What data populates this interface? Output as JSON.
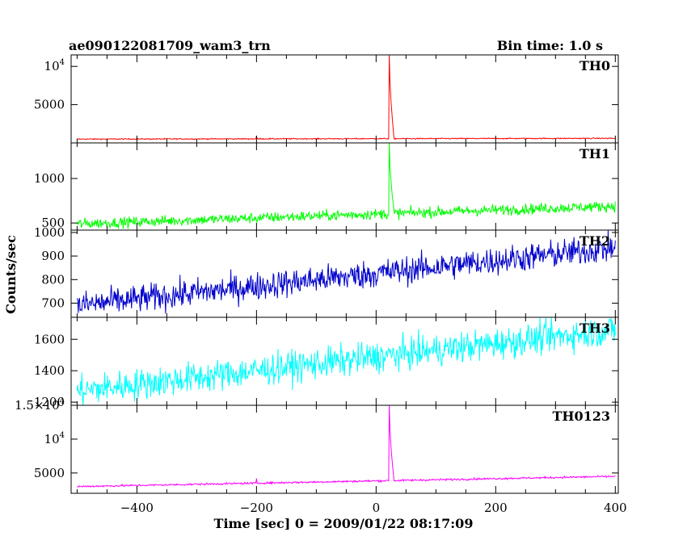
{
  "header": {
    "left_title": "ae090122081709_wam3_trn",
    "right_title": "Bin time: 1.0 s"
  },
  "chart_data": {
    "type": "line",
    "shared_x_axis": true,
    "xlabel": "Time [sec] 0 = 2009/01/22 08:17:09",
    "ylabel": "Counts/sec",
    "xlim": [
      -510,
      405
    ],
    "x_ticks": [
      -400,
      -200,
      0,
      200,
      400
    ],
    "x_tick_labels": [
      "−400",
      "−200",
      "0",
      "200",
      "400"
    ],
    "x_start": -500,
    "x_end": 400,
    "panels": [
      {
        "name": "TH0",
        "color": "#ff0000",
        "ylim": [
          0,
          11500
        ],
        "y_ticks": [
          5000,
          10000
        ],
        "y_tick_labels": [
          [
            "5000"
          ],
          [
            "10",
            "4"
          ]
        ],
        "baseline_start": 500,
        "baseline_end": 600,
        "noise": 35,
        "peak_x": 22,
        "peak_y": 11500,
        "decay_x": 30,
        "small_bump_x": -200,
        "small_bump_y": 900
      },
      {
        "name": "TH1",
        "color": "#00ff00",
        "ylim": [
          420,
          1400
        ],
        "y_ticks": [
          500,
          1000
        ],
        "y_tick_labels": [
          [
            "500"
          ],
          [
            "1000"
          ]
        ],
        "baseline_start": 490,
        "baseline_end": 690,
        "noise": 30,
        "peak_x": 22,
        "peak_y": 1400,
        "decay_x": 30
      },
      {
        "name": "TH2",
        "color": "#0000cc",
        "ylim": [
          640,
          1010
        ],
        "y_ticks": [
          700,
          800,
          900,
          1000
        ],
        "y_tick_labels": [
          [
            "700"
          ],
          [
            "800"
          ],
          [
            "900"
          ],
          [
            "1000"
          ]
        ],
        "baseline_start": 690,
        "baseline_end": 935,
        "noise": 30
      },
      {
        "name": "TH3",
        "color": "#00ffff",
        "ylim": [
          1180,
          1740
        ],
        "y_ticks": [
          1200,
          1400,
          1600
        ],
        "y_tick_labels": [
          [
            "1200"
          ],
          [
            "1400"
          ],
          [
            "1600"
          ]
        ],
        "baseline_start": 1270,
        "baseline_end": 1660,
        "noise": 50
      },
      {
        "name": "TH0123",
        "color": "#ff00ff",
        "ylim": [
          2000,
          15000
        ],
        "y_ticks": [
          5000,
          10000,
          15000
        ],
        "y_tick_labels": [
          [
            "5000"
          ],
          [
            "10",
            "4"
          ],
          [
            "1.5×10",
            "4"
          ]
        ],
        "baseline_start": 3000,
        "baseline_end": 4500,
        "noise": 70,
        "peak_x": 22,
        "peak_y": 15000,
        "decay_x": 30,
        "small_bump_x": -200,
        "small_bump_y": 4200
      }
    ]
  }
}
